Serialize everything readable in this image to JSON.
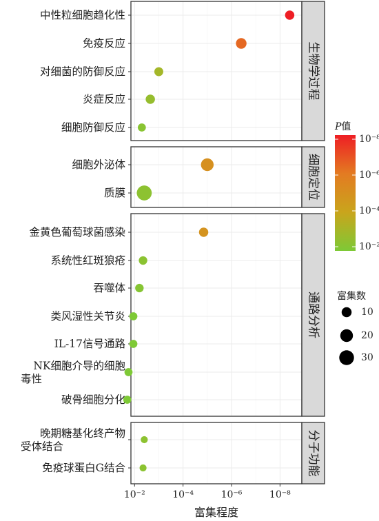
{
  "chart_data": {
    "type": "scatter",
    "xlabel": "富集程度",
    "x_ticks": [
      "10⁻²",
      "10⁻⁴",
      "10⁻⁶",
      "10⁻⁸"
    ],
    "x_tick_exponents": [
      -2,
      -4,
      -6,
      -8
    ],
    "x_scale": "-log10(P)",
    "xlim_neglog10": [
      1.85,
      8.9
    ],
    "grid": true,
    "legend_position": "right",
    "groups": [
      {
        "name": "生物学过程",
        "terms": [
          {
            "label": [
              "中性粒细胞趋化性"
            ],
            "neglog10_p": 8.4,
            "count": 8
          },
          {
            "label": [
              "免疫反应"
            ],
            "neglog10_p": 6.4,
            "count": 12
          },
          {
            "label": [
              "对细菌的防御反应"
            ],
            "neglog10_p": 3.0,
            "count": 7
          },
          {
            "label": [
              "炎症反应"
            ],
            "neglog10_p": 2.65,
            "count": 8
          },
          {
            "label": [
              "细胞防御反应"
            ],
            "neglog10_p": 2.3,
            "count": 5
          }
        ]
      },
      {
        "name": "细胞定位",
        "terms": [
          {
            "label": [
              "细胞外泌体"
            ],
            "neglog10_p": 5.0,
            "count": 20
          },
          {
            "label": [
              "质膜"
            ],
            "neglog10_p": 2.4,
            "count": 31
          }
        ]
      },
      {
        "name": "通路分析",
        "terms": [
          {
            "label": [
              "金黄色葡萄球菌感染"
            ],
            "neglog10_p": 4.85,
            "count": 8
          },
          {
            "label": [
              "系统性红斑狼疮"
            ],
            "neglog10_p": 2.35,
            "count": 6
          },
          {
            "label": [
              "吞噬体"
            ],
            "neglog10_p": 2.2,
            "count": 6
          },
          {
            "label": [
              "类风湿性关节炎"
            ],
            "neglog10_p": 1.95,
            "count": 5
          },
          {
            "label": [
              "IL-17信号通路"
            ],
            "neglog10_p": 1.95,
            "count": 5
          },
          {
            "label": [
              "NK细胞介导的细胞",
              "毒性"
            ],
            "neglog10_p": 1.75,
            "count": 5
          },
          {
            "label": [
              "破骨细胞分化"
            ],
            "neglog10_p": 1.7,
            "count": 5
          }
        ]
      },
      {
        "name": "分子功能",
        "terms": [
          {
            "label": [
              "晚期糖基化终产物",
              "受体结合"
            ],
            "neglog10_p": 2.4,
            "count": 3
          },
          {
            "label": [
              "免疫球蛋白G结合"
            ],
            "neglog10_p": 2.35,
            "count": 3
          }
        ]
      }
    ],
    "legend_color": {
      "title": "P值",
      "title_italic": "P",
      "title_rest": "值",
      "ticks": [
        "10⁻⁸",
        "10⁻⁶",
        "10⁻⁴",
        "10⁻²"
      ],
      "tick_exponents": [
        -8,
        -6,
        -4,
        -2
      ],
      "colors": [
        "#ee1e24",
        "#e37b22",
        "#c9a51c",
        "#7ec936"
      ]
    },
    "legend_size": {
      "title": "富集数",
      "values": [
        10,
        20,
        30
      ]
    }
  }
}
